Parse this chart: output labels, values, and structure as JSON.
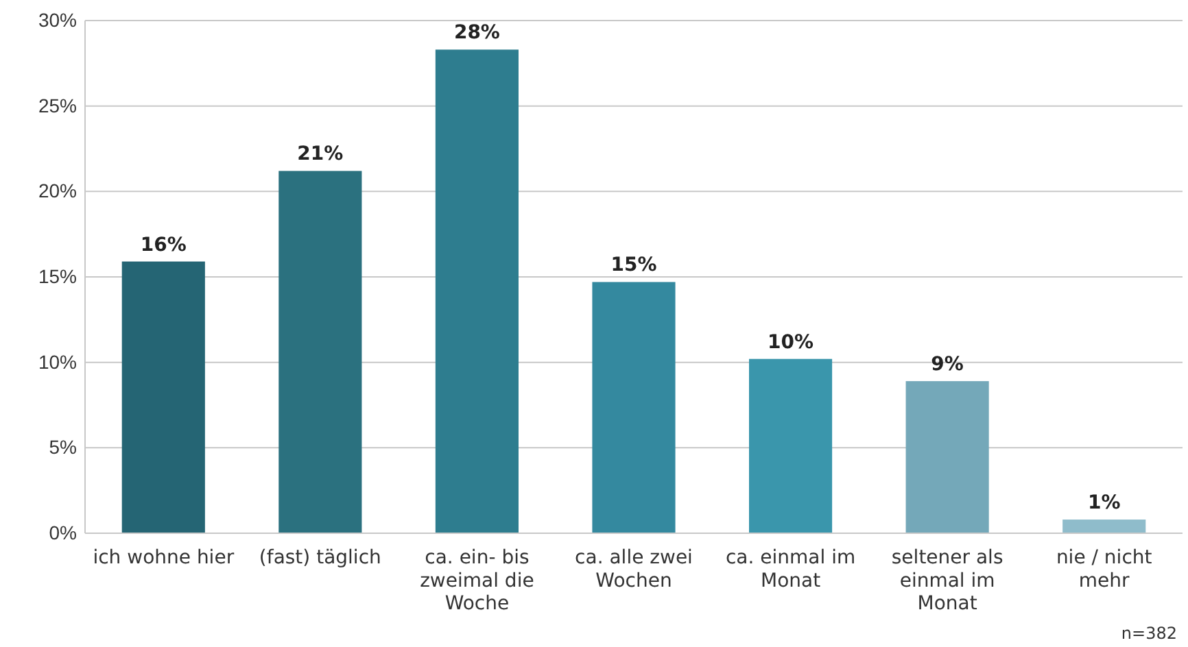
{
  "chart_data": {
    "type": "bar",
    "categories": [
      "ich wohne hier",
      "(fast) täglich",
      "ca. ein- bis zweimal die Woche",
      "ca. alle zwei Wochen",
      "ca. einmal im Monat",
      "seltener als einmal im Monat",
      "nie / nicht mehr"
    ],
    "values": [
      15.9,
      21.2,
      28.3,
      14.7,
      10.2,
      8.9,
      0.8
    ],
    "value_labels": [
      "16%",
      "21%",
      "28%",
      "15%",
      "10%",
      "9%",
      "1%"
    ],
    "colors": [
      "#256574",
      "#2b717f",
      "#2e7d8f",
      "#34899f",
      "#3a96ac",
      "#74a8b9",
      "#8fbccb"
    ],
    "ylim": [
      0,
      30
    ],
    "yticks": [
      {
        "value": 0,
        "label": "0%"
      },
      {
        "value": 5,
        "label": "5%"
      },
      {
        "value": 10,
        "label": "10%"
      },
      {
        "value": 15,
        "label": "15%"
      },
      {
        "value": 20,
        "label": "20%"
      },
      {
        "value": 25,
        "label": "25%"
      },
      {
        "value": 30,
        "label": "30%"
      }
    ],
    "grid": "y",
    "annotations": [
      "n=382"
    ]
  }
}
